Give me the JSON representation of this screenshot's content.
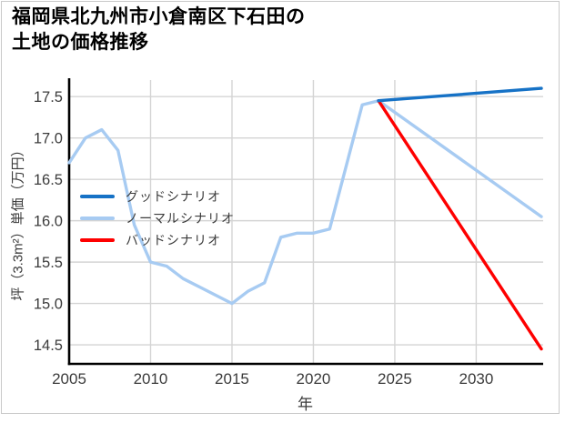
{
  "title": {
    "lines": [
      "福岡県北九州市小倉南区下石田の",
      "土地の価格推移"
    ]
  },
  "chart_data": {
    "type": "line",
    "title": "福岡県北九州市小倉南区下石田の土地の価格推移",
    "xlabel": "年",
    "ylabel": "坪（3.3m²）単価（万円）",
    "xlim": [
      2005,
      2034
    ],
    "ylim": [
      14.27,
      17.7
    ],
    "xticks": [
      2005,
      2010,
      2015,
      2020,
      2025,
      2030
    ],
    "yticks": [
      14.5,
      15.0,
      15.5,
      16.0,
      16.5,
      17.0,
      17.5
    ],
    "grid": true,
    "legend_position": "upper-left-inside",
    "series": [
      {
        "name": "グッドシナリオ",
        "color": "#1672c6",
        "x": [
          2024,
          2034
        ],
        "values": [
          17.45,
          17.6
        ]
      },
      {
        "name": "ノーマルシナリオ",
        "color": "#a7cbf2",
        "x": [
          2005,
          2006,
          2007,
          2008,
          2009,
          2010,
          2011,
          2012,
          2013,
          2014,
          2015,
          2016,
          2017,
          2018,
          2019,
          2020,
          2021,
          2022,
          2023,
          2024,
          2034
        ],
        "values": [
          16.7,
          17.0,
          17.1,
          16.85,
          15.95,
          15.5,
          15.45,
          15.3,
          15.2,
          15.1,
          15.0,
          15.15,
          15.25,
          15.8,
          15.85,
          15.85,
          15.9,
          16.65,
          17.4,
          17.45,
          16.05
        ]
      },
      {
        "name": "バッドシナリオ",
        "color": "#fe0000",
        "x": [
          2024,
          2034
        ],
        "values": [
          17.45,
          14.45
        ]
      }
    ]
  }
}
